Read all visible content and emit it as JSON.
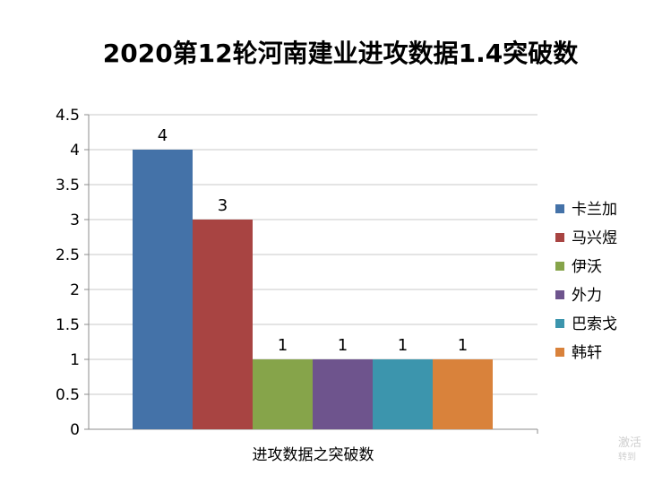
{
  "chart_data": {
    "type": "bar",
    "title": "2020第12轮河南建业进攻数据1.4突破数",
    "xlabel": "进攻数据之突破数",
    "ylabel": "",
    "ylim": [
      0,
      4.5
    ],
    "yticks": [
      "0",
      "0.5",
      "1",
      "1.5",
      "2",
      "2.5",
      "3",
      "3.5",
      "4",
      "4.5"
    ],
    "grid": true,
    "legend_position": "right",
    "series": [
      {
        "name": "卡兰加",
        "value": 4,
        "color": "#4472a8"
      },
      {
        "name": "马兴煜",
        "value": 3,
        "color": "#a84442"
      },
      {
        "name": "伊沃",
        "value": 1,
        "color": "#86a44a"
      },
      {
        "name": "外力",
        "value": 1,
        "color": "#6e548d"
      },
      {
        "name": "巴索戈",
        "value": 1,
        "color": "#3c95ad"
      },
      {
        "name": "韩轩",
        "value": 1,
        "color": "#d9823b"
      }
    ]
  },
  "watermark": {
    "line1": "激活",
    "line2": "转到"
  }
}
